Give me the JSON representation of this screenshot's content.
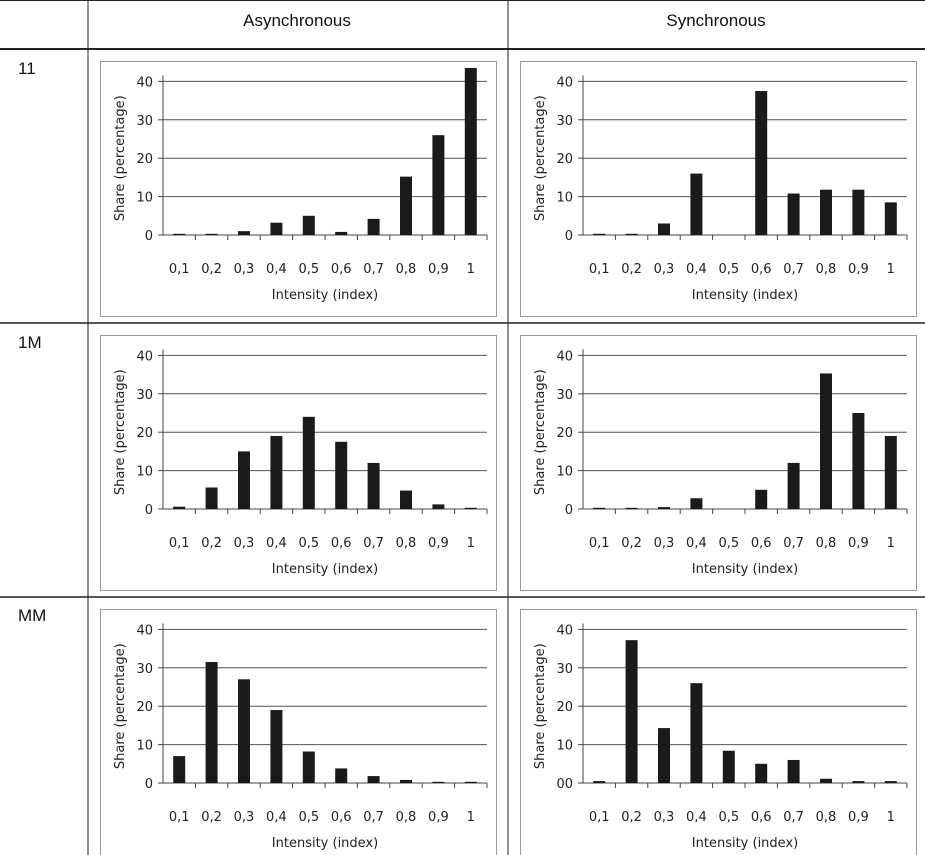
{
  "table": {
    "columns": [
      "Asynchronous",
      "Synchronous"
    ],
    "rows": [
      "11",
      "1M",
      "MM"
    ]
  },
  "chart_data": [
    {
      "type": "bar",
      "row": "11",
      "column": "Asynchronous",
      "categories": [
        "0,1",
        "0,2",
        "0,3",
        "0,4",
        "0,5",
        "0,6",
        "0,7",
        "0,8",
        "0,9",
        "1"
      ],
      "values": [
        0.3,
        0.3,
        1,
        3.2,
        5,
        0.8,
        4.2,
        15.2,
        26,
        43.5
      ],
      "xlabel": "Intensity (index)",
      "ylabel": "Share (percentage)",
      "ylim": [
        0,
        40
      ],
      "yticks": [
        "0",
        "10",
        "20",
        "30",
        "40"
      ],
      "grid": true
    },
    {
      "type": "bar",
      "row": "11",
      "column": "Synchronous",
      "categories": [
        "0,1",
        "0,2",
        "0,3",
        "0,4",
        "0,5",
        "0,6",
        "0,7",
        "0,8",
        "0,9",
        "1"
      ],
      "values": [
        0.3,
        0.3,
        3,
        16,
        0,
        37.5,
        10.8,
        11.8,
        11.8,
        8.5
      ],
      "xlabel": "Intensity (index)",
      "ylabel": "Share (percentage)",
      "ylim": [
        0,
        40
      ],
      "yticks": [
        "0",
        "10",
        "20",
        "30",
        "40"
      ],
      "grid": true
    },
    {
      "type": "bar",
      "row": "1M",
      "column": "Asynchronous",
      "categories": [
        "0,1",
        "0,2",
        "0,3",
        "0,4",
        "0,5",
        "0,6",
        "0,7",
        "0,8",
        "0,9",
        "1"
      ],
      "values": [
        0.6,
        5.6,
        15,
        19,
        24,
        17.5,
        12,
        4.8,
        1.2,
        0.2
      ],
      "xlabel": "Intensity (index)",
      "ylabel": "Share (percentage)",
      "ylim": [
        0,
        40
      ],
      "yticks": [
        "0",
        "10",
        "20",
        "30",
        "40"
      ],
      "grid": true
    },
    {
      "type": "bar",
      "row": "1M",
      "column": "Synchronous",
      "categories": [
        "0,1",
        "0,2",
        "0,3",
        "0,4",
        "0,5",
        "0,6",
        "0,7",
        "0,8",
        "0,9",
        "1"
      ],
      "values": [
        0.1,
        0.3,
        0.5,
        2.8,
        0,
        5,
        12,
        35.3,
        25,
        19
      ],
      "xlabel": "Intensity (index)",
      "ylabel": "Share (percentage)",
      "ylim": [
        0,
        40
      ],
      "yticks": [
        "0",
        "10",
        "20",
        "30",
        "40"
      ],
      "grid": true
    },
    {
      "type": "bar",
      "row": "MM",
      "column": "Asynchronous",
      "categories": [
        "0,1",
        "0,2",
        "0,3",
        "0,4",
        "0,5",
        "0,6",
        "0,7",
        "0,8",
        "0,9",
        "1"
      ],
      "values": [
        7,
        31.5,
        27,
        19,
        8.2,
        3.8,
        1.8,
        0.8,
        0.2,
        0.1
      ],
      "xlabel": "Intensity (index)",
      "ylabel": "Share (percentage)",
      "ylim": [
        0,
        40
      ],
      "yticks": [
        "0",
        "10",
        "20",
        "30",
        "40"
      ],
      "grid": true
    },
    {
      "type": "bar",
      "row": "MM",
      "column": "Synchronous",
      "categories": [
        "0,1",
        "0,2",
        "0,3",
        "0,4",
        "0,5",
        "0,6",
        "0,7",
        "0,8",
        "0,9",
        "1"
      ],
      "values": [
        0.5,
        37.2,
        14.3,
        26,
        8.4,
        5,
        6,
        1.1,
        0.5,
        0.5
      ],
      "xlabel": "Intensity (index)",
      "ylabel": "Share (percentage)",
      "ylim": [
        0,
        40
      ],
      "yticks": [
        "00",
        "10",
        "20",
        "30",
        "40"
      ],
      "grid": true
    }
  ],
  "colors": {
    "bar": "#1a1a1a",
    "grid": "#555555",
    "border": "#444444",
    "panel_border": "#9a9a9a"
  }
}
